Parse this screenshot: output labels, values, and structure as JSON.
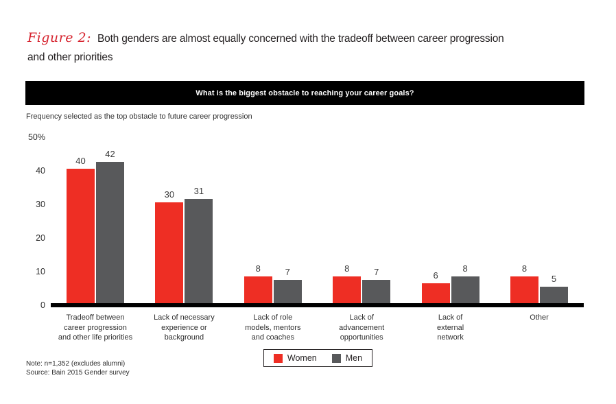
{
  "figure": {
    "label": "Figure 2:",
    "title": "Both genders are almost equally concerned with the tradeoff between career progression\nand other priorities"
  },
  "chart_data": {
    "type": "bar",
    "title": "What is the biggest obstacle to reaching your career goals?",
    "subtitle": "Frequency selected as the top obstacle to future career progression",
    "categories": [
      "Tradeoff between\ncareer progression\nand other life priorities",
      "Lack of necessary\nexperience or\nbackground",
      "Lack of role\nmodels, mentors\nand coaches",
      "Lack of\nadvancement\nopportunities",
      "Lack of\nexternal\nnetwork",
      "Other"
    ],
    "series": [
      {
        "name": "Women",
        "color": "#ee2e24",
        "values": [
          40,
          30,
          8,
          8,
          6,
          8
        ]
      },
      {
        "name": "Men",
        "color": "#58595b",
        "values": [
          42,
          31,
          7,
          7,
          8,
          5
        ]
      }
    ],
    "yticks": [
      0,
      10,
      20,
      30,
      40
    ],
    "ylabel_top": "50%",
    "ylim": [
      0,
      50
    ],
    "grid": false,
    "legend_position": "bottom-center",
    "value_labels": true
  },
  "notes": {
    "note": "Note: n=1,352 (excludes alumni)",
    "source": "Source: Bain 2015 Gender survey"
  },
  "colors": {
    "figure_label_red": "#d6232e",
    "title_text": "#231f20",
    "banner_background": "#000000",
    "banner_text": "#ffffff",
    "axis_line": "#000000"
  }
}
